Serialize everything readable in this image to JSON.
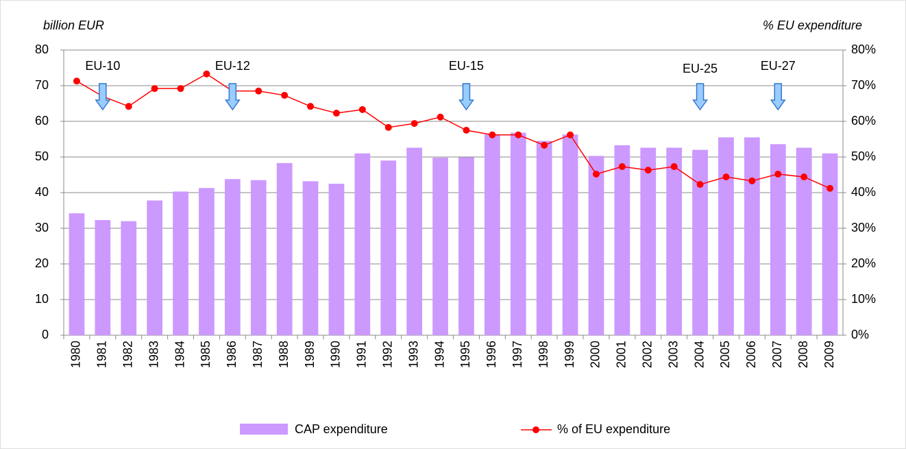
{
  "chart_data": {
    "type": "bar_line",
    "y_label": "billion EUR",
    "y2_label": "% EU expenditure",
    "categories": [
      "1980",
      "1981",
      "1982",
      "1983",
      "1984",
      "1985",
      "1986",
      "1987",
      "1988",
      "1989",
      "1990",
      "1991",
      "1992",
      "1993",
      "1994",
      "1995",
      "1996",
      "1997",
      "1998",
      "1999",
      "2000",
      "2001",
      "2002",
      "2003",
      "2004",
      "2005",
      "2006",
      "2007",
      "2008",
      "2009"
    ],
    "series": [
      {
        "name": "CAP expenditure",
        "type": "bar",
        "color": "#cc99ff",
        "values": [
          34.2,
          32.3,
          32,
          37.8,
          40.3,
          41.3,
          43.8,
          43.5,
          48.3,
          43.2,
          42.5,
          51,
          49,
          52.6,
          49.8,
          49.9,
          56.3,
          56.8,
          54.5,
          56.3,
          50.3,
          53.3,
          52.6,
          52.6,
          52,
          55.5,
          55.5,
          53.6,
          52.6,
          51
        ]
      },
      {
        "name": "% of EU expenditure",
        "type": "line",
        "axis": "y2",
        "color": "#ff0000",
        "values": [
          71.3,
          67,
          64.2,
          69.2,
          69.2,
          73.3,
          68.5,
          68.5,
          67.3,
          64.2,
          62.3,
          63.3,
          58.3,
          59.4,
          61.2,
          57.5,
          56.2,
          56.2,
          53.3,
          56.2,
          45.2,
          47.3,
          46.3,
          47.3,
          42.3,
          44.4,
          43.3,
          45.2,
          44.4,
          41.2
        ]
      }
    ],
    "ylim": [
      0,
      80
    ],
    "yticks": [
      0,
      10,
      20,
      30,
      40,
      50,
      60,
      70,
      80
    ],
    "y2lim": [
      0,
      80
    ],
    "y2ticks": [
      {
        "value": 0,
        "label": "0%"
      },
      {
        "value": 10,
        "label": "10%"
      },
      {
        "value": 20,
        "label": "20%"
      },
      {
        "value": 30,
        "label": "30%"
      },
      {
        "value": 40,
        "label": "40%"
      },
      {
        "value": 50,
        "label": "50%"
      },
      {
        "value": 60,
        "label": "60%"
      },
      {
        "value": 70,
        "label": "70%"
      },
      {
        "value": 80,
        "label": "80%"
      }
    ],
    "grid": true,
    "annotations": [
      {
        "text": "EU-10",
        "x": "1981"
      },
      {
        "text": "EU-12",
        "x": "1986"
      },
      {
        "text": "EU-15",
        "x": "1995"
      },
      {
        "text": "EU-25",
        "x": "2004"
      },
      {
        "text": "EU-27",
        "x": "2007"
      }
    ]
  }
}
